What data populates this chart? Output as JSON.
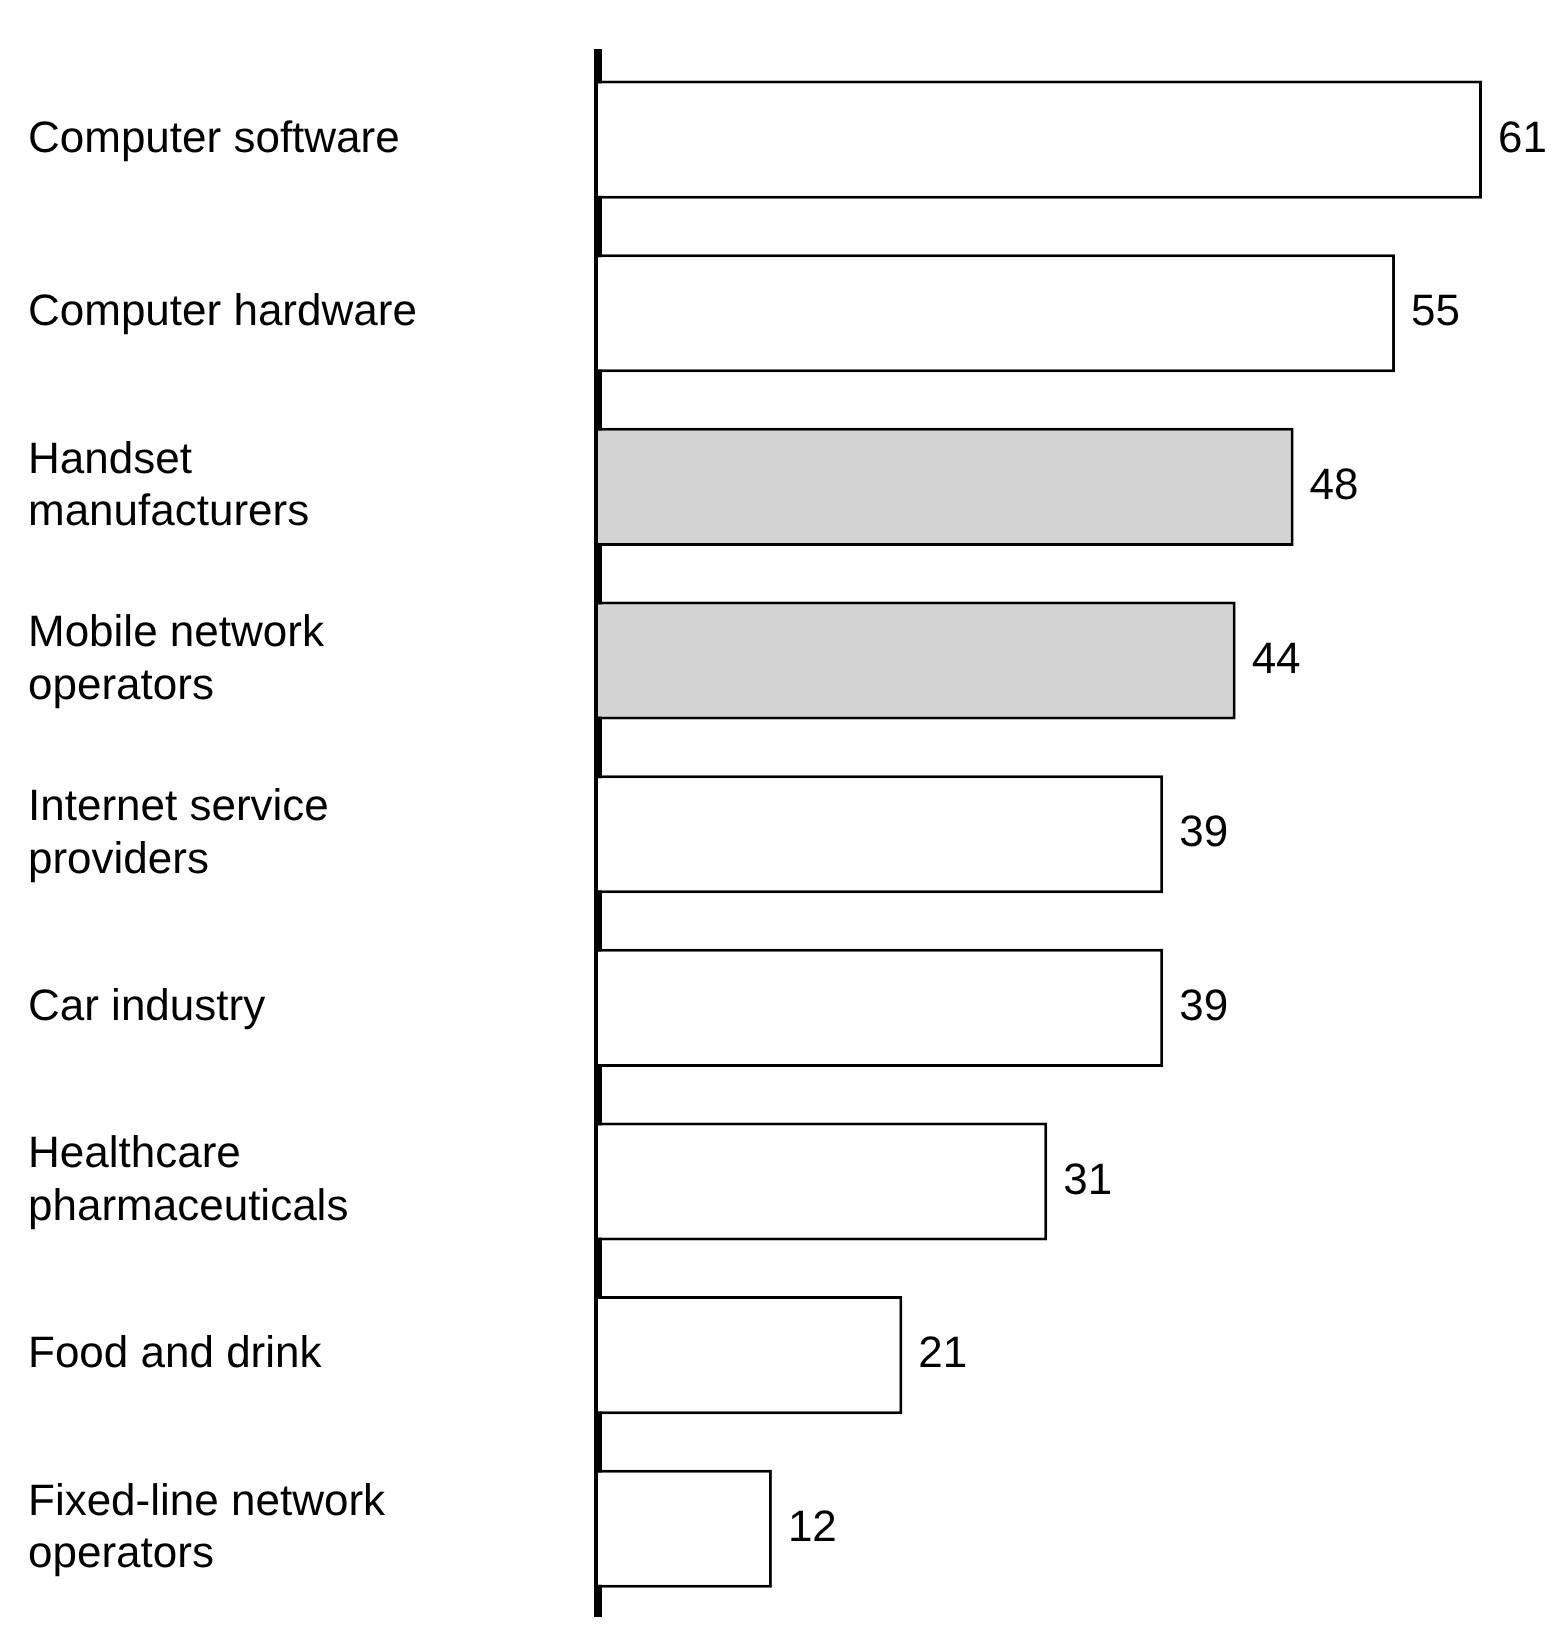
{
  "chart_data": {
    "type": "bar",
    "orientation": "horizontal",
    "categories": [
      "Computer software",
      "Computer hardware",
      "Handset manufacturers",
      "Mobile network operators",
      "Internet service providers",
      "Car industry",
      "Healthcare pharmaceuticals",
      "Food and drink",
      "Fixed-line network operators"
    ],
    "values": [
      61,
      55,
      48,
      44,
      39,
      39,
      31,
      21,
      12
    ],
    "colors": [
      "#ffffff",
      "#ffffff",
      "#d3d3d3",
      "#d3d3d3",
      "#ffffff",
      "#ffffff",
      "#ffffff",
      "#ffffff",
      "#ffffff"
    ],
    "data_labels": true,
    "legend": false,
    "tick_labels": "y"
  }
}
